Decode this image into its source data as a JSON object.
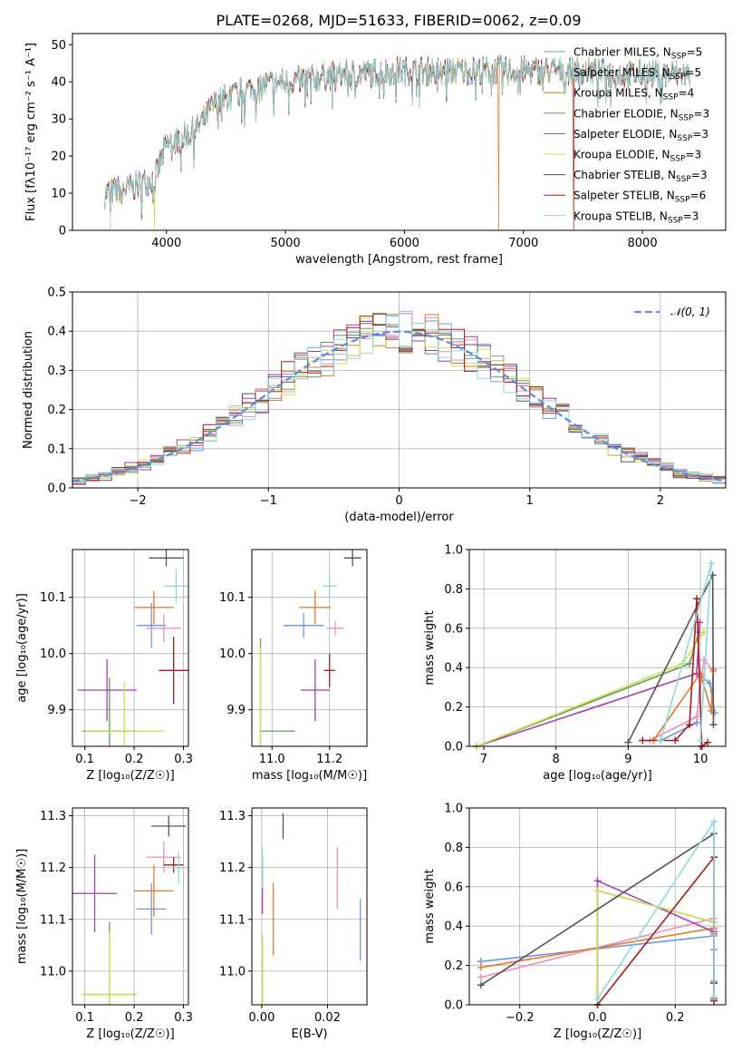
{
  "colors": [
    "#6e96e0",
    "#ef8fbd",
    "#e47a26",
    "#5e9a57",
    "#a33cb2",
    "#cde04a",
    "#555555",
    "#a81c1c",
    "#8fdae0"
  ],
  "normal_color": "#5f8fd6",
  "chart_data": [
    {
      "id": "spectrum",
      "type": "line",
      "title": "PLATE=0268, MJD=51633, FIBERID=0062, z=0.09",
      "xlabel": "wavelength [Angstrom, rest frame]",
      "ylabel": "Flux [fλ10⁻¹⁷ erg cm⁻² s⁻¹ A⁻¹]",
      "xlim": [
        3210,
        8700
      ],
      "ylim": [
        0,
        53
      ],
      "xticks": [
        4000,
        5000,
        6000,
        7000,
        8000
      ],
      "yticks": [
        0,
        10,
        20,
        30,
        40,
        50
      ],
      "grid": false,
      "legend_position": "top-right",
      "legend": [
        "Chabrier MILES, N_SSP=5",
        "Salpeter MILES, N_SSP=5",
        "Kroupa MILES, N_SSP=4",
        "Chabrier ELODIE, N_SSP=3",
        "Salpeter ELODIE, N_SSP=3",
        "Kroupa ELODIE, N_SSP=3",
        "Chabrier STELIB, N_SSP=3",
        "Salpeter STELIB, N_SSP=6",
        "Kroupa STELIB, N_SSP=3"
      ],
      "x_range": [
        3480,
        8400
      ],
      "continuum_points": [
        [
          3480,
          10
        ],
        [
          3700,
          11.5
        ],
        [
          3900,
          14
        ],
        [
          4000,
          23
        ],
        [
          4200,
          26
        ],
        [
          4300,
          29
        ],
        [
          4400,
          34
        ],
        [
          4600,
          37
        ],
        [
          4800,
          39
        ],
        [
          5000,
          40
        ],
        [
          5200,
          41
        ],
        [
          5500,
          42
        ],
        [
          6000,
          43
        ],
        [
          6500,
          43
        ],
        [
          7000,
          43
        ],
        [
          7500,
          43
        ],
        [
          7800,
          42
        ],
        [
          8100,
          42
        ],
        [
          8400,
          42
        ]
      ],
      "dropouts": [
        {
          "model": 1,
          "x_start": 3480,
          "x_end": 3530
        },
        {
          "model": 5,
          "x": 3900
        },
        {
          "model": 2,
          "x": 6790
        },
        {
          "model": 7,
          "x": 7420
        }
      ]
    },
    {
      "id": "residuals",
      "type": "histogram",
      "xlabel": "(data-model)/error",
      "ylabel": "Normed distribution",
      "xlim": [
        -2.5,
        2.5
      ],
      "ylim": [
        0,
        0.5
      ],
      "xticks": [
        -2,
        -1,
        0,
        1,
        2
      ],
      "xtick_labels": [
        "−2",
        "−1",
        "0",
        "1",
        "2"
      ],
      "yticks": [
        0.0,
        0.1,
        0.2,
        0.3,
        0.4,
        0.5
      ],
      "ytick_labels": [
        "0.0",
        "0.1",
        "0.2",
        "0.3",
        "0.4",
        "0.5"
      ],
      "grid": true,
      "legend_position": "top-right",
      "legend": [
        "𝒩(0, 1)"
      ],
      "bin_width": 0.1
    },
    {
      "id": "z-age",
      "type": "scatter",
      "xlabel": "Z [log₁₀(Z/Z☉)]",
      "ylabel": "age  [log₁₀(age/yr)]",
      "xlim": [
        0.075,
        0.31
      ],
      "ylim": [
        9.835,
        10.185
      ],
      "xticks": [
        0.1,
        0.2,
        0.3
      ],
      "xtick_labels": [
        "0.1",
        "0.2",
        "0.3"
      ],
      "yticks": [
        9.9,
        10.0,
        10.1
      ],
      "ytick_labels": [
        "9.9",
        "10.0",
        "10.1"
      ],
      "grid": true,
      "points": [
        {
          "model": 0,
          "x": 0.235,
          "y": 10.05,
          "xerr": 0.03,
          "yerr": 0.04
        },
        {
          "model": 1,
          "x": 0.26,
          "y": 10.045,
          "xerr": 0.035,
          "yerr": 0.025
        },
        {
          "model": 2,
          "x": 0.24,
          "y": 10.082,
          "xerr": 0.04,
          "yerr": 0.03
        },
        {
          "model": 3,
          "x": 0.15,
          "y": 9.862,
          "xerr": 0.055,
          "yerr": 0.095
        },
        {
          "model": 4,
          "x": 0.145,
          "y": 9.935,
          "xerr": 0.06,
          "yerr": 0.055
        },
        {
          "model": 5,
          "x": 0.18,
          "y": 9.862,
          "xerr": 0.08,
          "yerr": 0.085
        },
        {
          "model": 6,
          "x": 0.265,
          "y": 10.17,
          "xerr": 0.035,
          "yerr": 0.015
        },
        {
          "model": 7,
          "x": 0.28,
          "y": 9.97,
          "xerr": 0.03,
          "yerr": 0.06
        },
        {
          "model": 8,
          "x": 0.285,
          "y": 10.12,
          "xerr": 0.025,
          "yerr": 0.03
        }
      ]
    },
    {
      "id": "mass-age",
      "type": "scatter",
      "xlabel": "mass [log₁₀(M/M☉)]",
      "ylabel": "",
      "xlim": [
        10.93,
        11.33
      ],
      "ylim": [
        9.835,
        10.185
      ],
      "xticks": [
        11.0,
        11.2
      ],
      "xtick_labels": [
        "11.0",
        "11.2"
      ],
      "yticks": [
        9.9,
        10.0,
        10.1
      ],
      "ytick_labels": [
        "9.9",
        "10.0",
        "10.1"
      ],
      "grid": true,
      "points": [
        {
          "model": 0,
          "x": 11.11,
          "y": 10.05,
          "xerr": 0.07,
          "yerr": 0.022
        },
        {
          "model": 1,
          "x": 11.22,
          "y": 10.045,
          "xerr": 0.03,
          "yerr": 0.013
        },
        {
          "model": 2,
          "x": 11.15,
          "y": 10.082,
          "xerr": 0.055,
          "yerr": 0.03
        },
        {
          "model": 3,
          "x": 10.96,
          "y": 9.862,
          "xerr": 0.005,
          "yerr": 0.165
        },
        {
          "model": 4,
          "x": 11.15,
          "y": 9.935,
          "xerr": 0.05,
          "yerr": 0.055
        },
        {
          "model": 5,
          "x": 10.96,
          "y": 9.862,
          "xerr": 0.005,
          "yerr": 0.15
        },
        {
          "model": 6,
          "x": 11.28,
          "y": 10.17,
          "xerr": 0.03,
          "yerr": 0.015
        },
        {
          "model": 7,
          "x": 11.2,
          "y": 9.97,
          "xerr": 0.02,
          "yerr": 0.03
        },
        {
          "model": 8,
          "x": 11.2,
          "y": 10.12,
          "xerr": 0.025,
          "yerr": 0.02
        }
      ],
      "extra_hlines": [
        {
          "model": 3,
          "x1": 10.955,
          "x2": 11.08,
          "y": 9.862
        }
      ]
    },
    {
      "id": "age-weight",
      "type": "line",
      "xlabel": "age  [log₁₀(age/yr)]",
      "ylabel": "mass weight",
      "xlim": [
        6.8,
        10.35
      ],
      "ylim": [
        0,
        1
      ],
      "xticks": [
        7,
        8,
        9,
        10
      ],
      "xtick_labels": [
        "7",
        "8",
        "9",
        "10"
      ],
      "yticks": [
        0.0,
        0.2,
        0.4,
        0.6,
        0.8,
        1.0
      ],
      "ytick_labels": [
        "0.0",
        "0.2",
        "0.4",
        "0.6",
        "0.8",
        "1.0"
      ],
      "grid": true,
      "series": [
        {
          "model": 0,
          "points": [
            [
              9.45,
              0.03
            ],
            [
              9.95,
              0.12
            ],
            [
              10.0,
              0.36
            ],
            [
              10.13,
              0.32
            ],
            [
              10.2,
              0.17
            ]
          ]
        },
        {
          "model": 1,
          "points": [
            [
              9.3,
              0.03
            ],
            [
              9.95,
              0.15
            ],
            [
              10.05,
              0.44
            ],
            [
              10.18,
              0.38
            ]
          ]
        },
        {
          "model": 2,
          "points": [
            [
              9.35,
              0.03
            ],
            [
              10.0,
              0.37
            ],
            [
              10.15,
              0.18
            ],
            [
              10.18,
              0.39
            ]
          ]
        },
        {
          "model": 3,
          "points": [
            [
              6.9,
              0.0
            ],
            [
              9.85,
              0.42
            ],
            [
              9.98,
              0.58
            ]
          ]
        },
        {
          "model": 4,
          "points": [
            [
              6.9,
              0.0
            ],
            [
              9.95,
              0.37
            ],
            [
              9.99,
              0.63
            ]
          ]
        },
        {
          "model": 5,
          "points": [
            [
              6.9,
              0.0
            ],
            [
              9.75,
              0.42
            ],
            [
              10.05,
              0.58
            ]
          ]
        },
        {
          "model": 6,
          "points": [
            [
              9.0,
              0.02
            ],
            [
              10.17,
              0.87
            ],
            [
              10.18,
              0.11
            ]
          ]
        },
        {
          "model": 7,
          "points": [
            [
              9.2,
              0.03
            ],
            [
              9.65,
              0.03
            ],
            [
              9.85,
              0.11
            ],
            [
              9.95,
              0.75
            ],
            [
              10.02,
              0.0
            ],
            [
              10.1,
              0.02
            ]
          ]
        },
        {
          "model": 8,
          "points": [
            [
              9.45,
              0.03
            ],
            [
              10.15,
              0.93
            ],
            [
              10.0,
              0.03
            ]
          ]
        }
      ]
    },
    {
      "id": "z-mass",
      "type": "scatter",
      "xlabel": "Z [log₁₀(Z/Z☉)]",
      "ylabel": "mass [log₁₀(M/M☉)]",
      "xlim": [
        0.075,
        0.31
      ],
      "ylim": [
        10.935,
        11.315
      ],
      "xticks": [
        0.1,
        0.2,
        0.3
      ],
      "xtick_labels": [
        "0.1",
        "0.2",
        "0.3"
      ],
      "yticks": [
        11.0,
        11.1,
        11.2,
        11.3
      ],
      "ytick_labels": [
        "11.0",
        "11.1",
        "11.2",
        "11.3"
      ],
      "grid": true,
      "points": [
        {
          "model": 0,
          "x": 0.235,
          "y": 11.12,
          "xerr": 0.03,
          "yerr": 0.05
        },
        {
          "model": 1,
          "x": 0.26,
          "y": 11.22,
          "xerr": 0.035,
          "yerr": 0.03
        },
        {
          "model": 2,
          "x": 0.24,
          "y": 11.155,
          "xerr": 0.04,
          "yerr": 0.05
        },
        {
          "model": 3,
          "x": 0.15,
          "y": 10.955,
          "xerr": 0.055,
          "yerr": 0.14
        },
        {
          "model": 4,
          "x": 0.12,
          "y": 11.15,
          "xerr": 0.045,
          "yerr": 0.075
        },
        {
          "model": 5,
          "x": 0.15,
          "y": 10.955,
          "xerr": 0.055,
          "yerr": 0.12
        },
        {
          "model": 6,
          "x": 0.27,
          "y": 11.28,
          "xerr": 0.035,
          "yerr": 0.02
        },
        {
          "model": 7,
          "x": 0.28,
          "y": 11.205,
          "xerr": 0.02,
          "yerr": 0.015
        },
        {
          "model": 8,
          "x": 0.29,
          "y": 11.2,
          "xerr": 0.015,
          "yerr": 0.03
        }
      ]
    },
    {
      "id": "ebv-mass",
      "type": "scatter",
      "xlabel": "E(B-V)",
      "ylabel": "",
      "xlim": [
        -0.003,
        0.032
      ],
      "ylim": [
        10.935,
        11.315
      ],
      "xticks": [
        0.0,
        0.02
      ],
      "xtick_labels": [
        "0.00",
        "0.02"
      ],
      "yticks": [
        11.0,
        11.1,
        11.2,
        11.3
      ],
      "ytick_labels": [
        "11.0",
        "11.1",
        "11.2",
        "11.3"
      ],
      "grid": true,
      "points": [
        {
          "model": 0,
          "x": 0.03,
          "y": 11.08,
          "xerr": 0,
          "yerr": 0.06
        },
        {
          "model": 1,
          "x": 0.023,
          "y": 11.18,
          "xerr": 0,
          "yerr": 0.06
        },
        {
          "model": 2,
          "x": 0.0035,
          "y": 11.1,
          "xerr": 0,
          "yerr": 0.07
        },
        {
          "model": 3,
          "x": 0.0002,
          "y": 11.0,
          "xerr": 0,
          "yerr": 0.06
        },
        {
          "model": 4,
          "x": 0.0002,
          "y": 11.15,
          "xerr": 0,
          "yerr": 0.04
        },
        {
          "model": 5,
          "x": 0.0002,
          "y": 11.0,
          "xerr": 0,
          "yerr": 0.07
        },
        {
          "model": 6,
          "x": 0.0065,
          "y": 11.28,
          "xerr": 0,
          "yerr": 0.025
        },
        {
          "model": 7,
          "x": 0.0002,
          "y": 11.2,
          "xerr": 0,
          "yerr": 0.02
        },
        {
          "model": 8,
          "x": 0.0002,
          "y": 11.2,
          "xerr": 0,
          "yerr": 0.04
        }
      ]
    },
    {
      "id": "z-weight",
      "type": "line",
      "xlabel": "Z [log₁₀(Z/Z☉)]",
      "ylabel": "mass weight",
      "xlim": [
        -0.33,
        0.33
      ],
      "ylim": [
        0,
        1
      ],
      "xticks": [
        -0.2,
        0.0,
        0.2
      ],
      "xtick_labels": [
        "−0.2",
        "0.0",
        "0.2"
      ],
      "yticks": [
        0.0,
        0.2,
        0.4,
        0.6,
        0.8,
        1.0
      ],
      "ytick_labels": [
        "0.0",
        "0.2",
        "0.4",
        "0.6",
        "0.8",
        "1.0"
      ],
      "grid": true,
      "series": [
        {
          "model": 0,
          "points": [
            [
              -0.3,
              0.22
            ],
            [
              0.3,
              0.35
            ],
            [
              0.3,
              0.28
            ],
            [
              0.3,
              0.12
            ]
          ]
        },
        {
          "model": 1,
          "points": [
            [
              -0.3,
              0.14
            ],
            [
              0.3,
              0.44
            ],
            [
              0.3,
              0.38
            ]
          ]
        },
        {
          "model": 2,
          "points": [
            [
              -0.3,
              0.19
            ],
            [
              0.3,
              0.39
            ],
            [
              0.3,
              0.36
            ]
          ]
        },
        {
          "model": 3,
          "points": [
            [
              0.0,
              0.0
            ],
            [
              0.0,
              0.58
            ],
            [
              0.3,
              0.42
            ],
            [
              0.3,
              0.02
            ]
          ]
        },
        {
          "model": 4,
          "points": [
            [
              0.0,
              0.0
            ],
            [
              0.0,
              0.63
            ],
            [
              0.3,
              0.37
            ]
          ]
        },
        {
          "model": 5,
          "points": [
            [
              0.0,
              0.0
            ],
            [
              0.0,
              0.58
            ],
            [
              0.3,
              0.42
            ]
          ]
        },
        {
          "model": 6,
          "points": [
            [
              -0.3,
              0.1
            ],
            [
              0.3,
              0.87
            ],
            [
              0.3,
              0.03
            ]
          ]
        },
        {
          "model": 7,
          "points": [
            [
              0.0,
              0.0
            ],
            [
              0.3,
              0.75
            ],
            [
              0.3,
              0.11
            ],
            [
              0.3,
              0.02
            ]
          ]
        },
        {
          "model": 8,
          "points": [
            [
              0.0,
              0.03
            ],
            [
              0.3,
              0.93
            ],
            [
              0.3,
              0.04
            ]
          ]
        }
      ]
    }
  ]
}
